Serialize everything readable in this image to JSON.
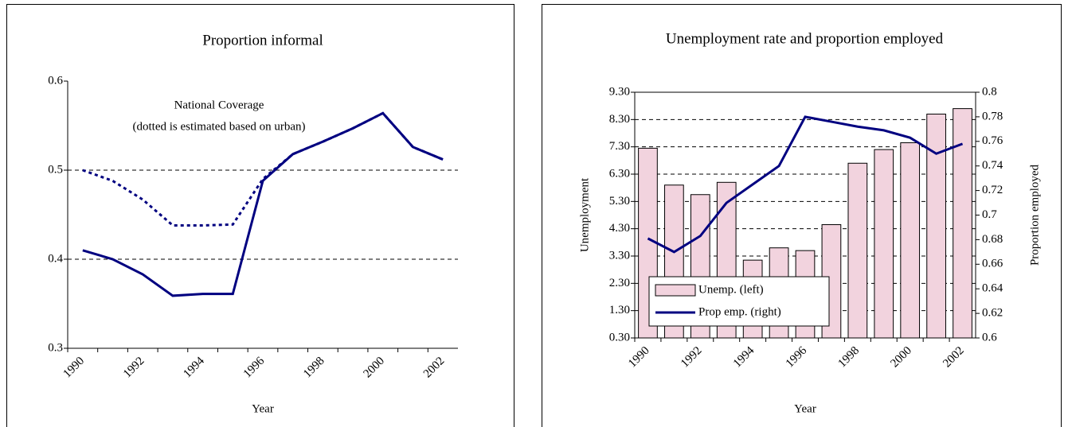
{
  "chart_data": [
    {
      "type": "line",
      "title": "Proportion informal",
      "annotations": [
        "National Coverage",
        "(dotted is estimated based on urban)"
      ],
      "x_label": "Year",
      "categories": [
        "1990",
        null,
        "1992",
        null,
        "1994",
        null,
        "1996",
        null,
        "1998",
        null,
        "2000",
        null,
        "2002"
      ],
      "series": [
        {
          "color": "#000080",
          "style": "solid",
          "values": [
            0.41,
            0.4,
            0.383,
            0.359,
            0.361,
            0.361,
            0.488,
            0.518,
            0.532,
            0.547,
            0.564,
            0.526,
            0.512
          ]
        },
        {
          "color": "#000080",
          "style": "dotted",
          "values": [
            0.5,
            0.488,
            0.467,
            0.438,
            0.438,
            0.439,
            0.49,
            0.518,
            0.532,
            0.547,
            0.564,
            0.526,
            0.512
          ]
        }
      ],
      "ylim": [
        0.3,
        0.6
      ],
      "yticks": [
        0.3,
        0.4,
        0.5,
        0.6
      ],
      "grid": true
    },
    {
      "type": "bar",
      "title": "Unemployment rate and proportion employed",
      "x_label": "Year",
      "y_label": "Unemployment",
      "y2_label": "Proportion employed",
      "categories": [
        "1990",
        null,
        "1992",
        null,
        "1994",
        null,
        "1996",
        null,
        "1998",
        null,
        "2000",
        null,
        "2002"
      ],
      "series": [
        {
          "name": "Unemp. (left)",
          "type": "bar",
          "color": "#f2d3de",
          "values": [
            7.25,
            5.9,
            5.55,
            6.0,
            3.15,
            3.6,
            3.5,
            4.45,
            6.7,
            7.2,
            7.45,
            8.5,
            8.7
          ]
        },
        {
          "name": "Prop emp. (right)",
          "type": "line",
          "axis": "y2",
          "color": "#000080",
          "values": [
            0.681,
            0.67,
            0.683,
            0.71,
            0.725,
            0.74,
            0.78,
            0.776,
            0.772,
            0.769,
            0.763,
            0.75,
            0.758
          ]
        }
      ],
      "ylim": [
        0.3,
        9.3
      ],
      "yticks": [
        {
          "value": 0.3,
          "label": "0.30"
        },
        {
          "value": 1.3,
          "label": "1.30"
        },
        {
          "value": 2.3,
          "label": "2.30"
        },
        {
          "value": 3.3,
          "label": "3.30"
        },
        {
          "value": 4.3,
          "label": "4.30"
        },
        {
          "value": 5.3,
          "label": "5.30"
        },
        {
          "value": 6.3,
          "label": "6.30"
        },
        {
          "value": 7.3,
          "label": "7.30"
        },
        {
          "value": 8.3,
          "label": "8.30"
        },
        {
          "value": 9.3,
          "label": "9.30"
        }
      ],
      "y2lim": [
        0.6,
        0.8
      ],
      "y2ticks": [
        0.6,
        0.62,
        0.64,
        0.66,
        0.68,
        0.7,
        0.72,
        0.74,
        0.76,
        0.78,
        0.8
      ],
      "grid": true,
      "legend": "lower-left"
    }
  ]
}
